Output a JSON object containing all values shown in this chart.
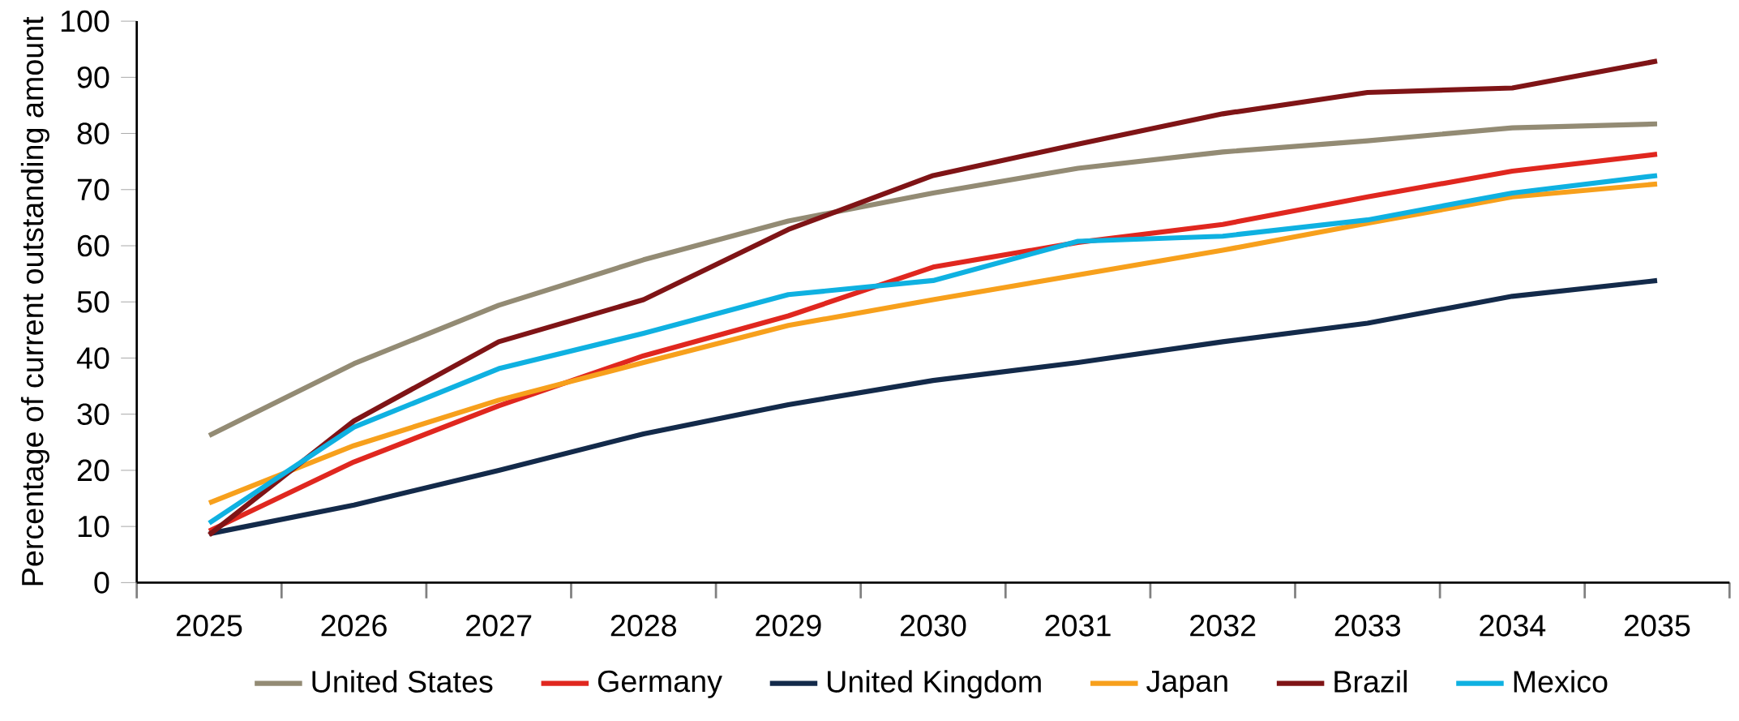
{
  "chart_data": {
    "type": "line",
    "ylabel": "Percentage of current outstanding amount",
    "categories": [
      "2025",
      "2026",
      "2027",
      "2028",
      "2029",
      "2030",
      "2031",
      "2032",
      "2033",
      "2034",
      "2035"
    ],
    "ylim": [
      0,
      100
    ],
    "yticks": [
      0,
      10,
      20,
      30,
      40,
      50,
      60,
      70,
      80,
      90,
      100
    ],
    "grid": false,
    "legend": "bottom",
    "marker": "none",
    "line_style": "solid",
    "series": [
      {
        "name": "United States",
        "color": "#938b74",
        "values": [
          26.2,
          39,
          49.4,
          57.5,
          64.4,
          69.4,
          73.8,
          76.7,
          78.7,
          81,
          81.7
        ]
      },
      {
        "name": "Germany",
        "color": "#e0271f",
        "values": [
          9.2,
          21.5,
          31.5,
          40.4,
          47.5,
          56.2,
          60.6,
          63.8,
          68.7,
          73.3,
          76.3
        ]
      },
      {
        "name": "United Kingdom",
        "color": "#132a4a",
        "values": [
          8.7,
          13.8,
          20,
          26.5,
          31.7,
          36,
          39.2,
          42.9,
          46.2,
          51,
          53.8
        ]
      },
      {
        "name": "Japan",
        "color": "#f7a01c",
        "values": [
          14.2,
          24.4,
          32.5,
          39.2,
          45.8,
          50.4,
          54.8,
          59.2,
          64,
          68.7,
          71
        ]
      },
      {
        "name": "Brazil",
        "color": "#7f1416",
        "values": [
          8.5,
          28.8,
          42.9,
          50.4,
          62.9,
          72.5,
          78.1,
          83.5,
          87.3,
          88.1,
          92.9
        ]
      },
      {
        "name": "Mexico",
        "color": "#0fb1e1",
        "values": [
          10.6,
          27.7,
          38.1,
          44.4,
          51.3,
          53.8,
          60.8,
          61.7,
          64.6,
          69.4,
          72.5
        ]
      }
    ]
  }
}
